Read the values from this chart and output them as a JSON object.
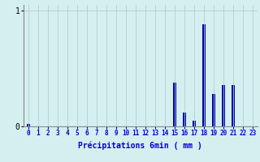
{
  "title": "",
  "xlabel": "Précipitations 6min ( mm )",
  "ylabel": "",
  "background_color": "#d4efef",
  "bar_color": "#0000aa",
  "grid_color": "#b0d0d0",
  "axis_color": "#888888",
  "text_color": "#0000cc",
  "xlim": [
    -0.5,
    23.5
  ],
  "ylim": [
    0,
    1.05
  ],
  "yticks": [
    0,
    1
  ],
  "xtick_labels": [
    "0",
    "1",
    "2",
    "3",
    "4",
    "5",
    "6",
    "7",
    "8",
    "9",
    "10",
    "11",
    "12",
    "13",
    "14",
    "15",
    "16",
    "17",
    "18",
    "19",
    "20",
    "21",
    "22",
    "23"
  ],
  "values": [
    0.02,
    0,
    0,
    0,
    0,
    0,
    0,
    0,
    0,
    0,
    0,
    0,
    0,
    0,
    0,
    0.38,
    0.12,
    0.05,
    0.88,
    0.28,
    0.36,
    0.36,
    0,
    0
  ],
  "figsize": [
    3.2,
    2.0
  ],
  "dpi": 100
}
